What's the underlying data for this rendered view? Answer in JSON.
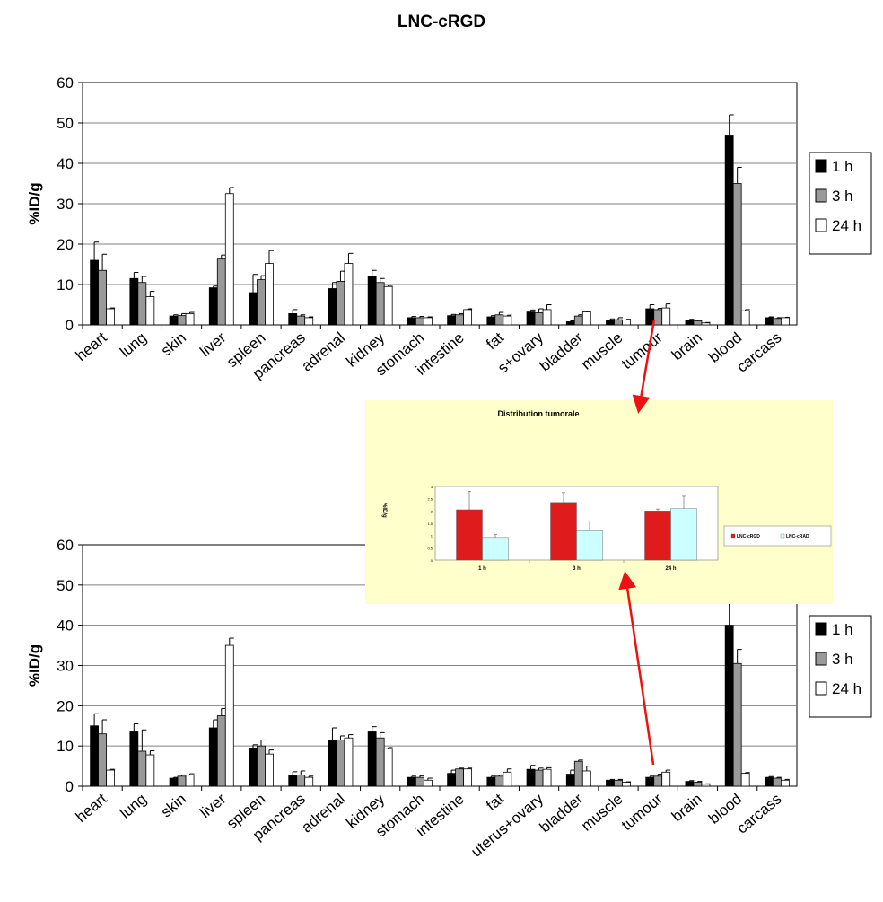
{
  "title": "LNC-cRGD",
  "colors": {
    "h1": "#000000",
    "h3": "#999999",
    "h24": "#ffffff",
    "grid": "#808080",
    "inset_bg": "#ffffcc",
    "cRGD": "#e01b1b",
    "cRAD": "#ccffff",
    "arrow": "#ee1111"
  },
  "chart_data": [
    {
      "type": "bar",
      "ylabel": "%ID/g",
      "ylim": [
        0,
        60
      ],
      "yticks": [
        0,
        10,
        20,
        30,
        40,
        50,
        60
      ],
      "categories": [
        "heart",
        "lung",
        "skin",
        "liver",
        "spleen",
        "pancreas",
        "adrenal",
        "kidney",
        "stomach",
        "intestine",
        "fat",
        "uterus+ovary",
        "bladder",
        "muscle",
        "tumour",
        "brain",
        "blood",
        "carcass"
      ],
      "visible_tick_labels": [
        "heart",
        "lung",
        "skin",
        "liver",
        "spleen",
        "pancreas",
        "adrenal",
        "kidney",
        "stomach",
        "intestine",
        "fat",
        "s+ovary",
        "bladder",
        "muscle",
        "tumour",
        "brain",
        "blood",
        "carcass"
      ],
      "legend": [
        "1 h",
        "3 h",
        "24 h"
      ],
      "series": [
        {
          "name": "1 h",
          "values": [
            16,
            11.5,
            2.2,
            9.2,
            8,
            2.8,
            9,
            12,
            1.8,
            2.3,
            2,
            3.2,
            0.8,
            1.2,
            4,
            1.2,
            47,
            1.8
          ],
          "errors": [
            4.5,
            1.5,
            0.3,
            0.4,
            4.5,
            1,
            1.5,
            1.5,
            0.3,
            0.3,
            0.3,
            0.5,
            0.2,
            0.3,
            1,
            0.2,
            5,
            0.2
          ]
        },
        {
          "name": "3 h",
          "values": [
            13.5,
            10.5,
            2.3,
            16.3,
            11.2,
            2.2,
            10.8,
            10.5,
            1.8,
            2.5,
            2.5,
            3,
            2.2,
            1.3,
            3.8,
            1,
            35,
            1.6
          ],
          "errors": [
            4,
            1.5,
            0.5,
            1,
            1,
            0.3,
            2.5,
            1,
            0.3,
            0.3,
            0.6,
            1,
            0.3,
            0.5,
            0.3,
            0.2,
            4,
            0.2
          ]
        },
        {
          "name": "24 h",
          "values": [
            4,
            7,
            2.8,
            32.5,
            15.2,
            1.8,
            15.2,
            9.5,
            1.8,
            3.8,
            2.2,
            3.8,
            3.2,
            1.2,
            4.2,
            0.5,
            3.5,
            1.8
          ],
          "errors": [
            0.2,
            1.3,
            0.3,
            1.5,
            3.2,
            0.2,
            2.5,
            0.3,
            0.2,
            0.2,
            0.2,
            1.2,
            0.2,
            0.2,
            1,
            0.1,
            0.3,
            0.1
          ]
        }
      ]
    },
    {
      "type": "bar",
      "ylabel": "%ID/g",
      "ylim": [
        0,
        60
      ],
      "yticks": [
        0,
        10,
        20,
        30,
        40,
        50,
        60
      ],
      "categories": [
        "heart",
        "lung",
        "skin",
        "liver",
        "spleen",
        "pancreas",
        "adrenal",
        "kidney",
        "stomach",
        "intestine",
        "fat",
        "uterus+ovary",
        "bladder",
        "muscle",
        "tumour",
        "brain",
        "blood",
        "carcass"
      ],
      "visible_tick_labels": [
        "heart",
        "lung",
        "skin",
        "liver",
        "spleen",
        "pancreas",
        "adrenal",
        "kidney",
        "stomach",
        "intestine",
        "fat",
        "uterus+ovary",
        "bladder",
        "muscle",
        "tumour",
        "brain",
        "blood",
        "carcass"
      ],
      "legend": [
        "1 h",
        "3 h",
        "24 h"
      ],
      "series": [
        {
          "name": "1 h",
          "values": [
            15,
            13.5,
            2,
            14.5,
            9.5,
            2.8,
            11.5,
            13.5,
            2.2,
            3.2,
            2.2,
            4.2,
            3,
            1.5,
            2.2,
            1.2,
            40,
            2.2
          ],
          "errors": [
            3,
            2,
            0.2,
            2,
            0.8,
            0.8,
            3,
            1.3,
            0.3,
            0.8,
            0.3,
            1,
            1,
            0.2,
            0.3,
            0.2,
            6,
            0.2
          ]
        },
        {
          "name": "3 h",
          "values": [
            13,
            8.7,
            2.5,
            17.5,
            10,
            2.8,
            11.5,
            12,
            2.2,
            4.3,
            2.5,
            4,
            6.2,
            1.5,
            2.5,
            1,
            30.5,
            2
          ],
          "errors": [
            3.5,
            5.3,
            0.3,
            1.8,
            1.5,
            1,
            1,
            1.3,
            0.4,
            0.2,
            0.3,
            0.5,
            0.3,
            0.2,
            0.5,
            0.2,
            3.5,
            0.2
          ]
        },
        {
          "name": "24 h",
          "values": [
            4,
            7.8,
            2.8,
            35,
            8,
            2.2,
            12,
            9.3,
            1.5,
            4.3,
            3.5,
            4.2,
            3.8,
            1,
            3.5,
            0.5,
            3.2,
            1.5
          ],
          "errors": [
            0.2,
            1,
            0.3,
            1.8,
            1,
            0.3,
            0.8,
            0.3,
            0.5,
            0.2,
            0.8,
            0.4,
            1.2,
            0.1,
            0.5,
            0.1,
            0.2,
            0.2
          ]
        }
      ]
    },
    {
      "type": "bar",
      "title": "Distribution tumorale",
      "ylabel": "%ID/g",
      "ylim": [
        0,
        3
      ],
      "yticks": [
        0,
        0.5,
        1,
        1.5,
        2,
        2.5,
        3
      ],
      "categories": [
        "1 h",
        "3 h",
        "24 h"
      ],
      "series": [
        {
          "name": "LNC-cRGD",
          "values": [
            2.05,
            2.35,
            2.0
          ],
          "errors": [
            0.75,
            0.4,
            0.08
          ]
        },
        {
          "name": "LNC-cRAD",
          "values": [
            0.92,
            1.2,
            2.1
          ],
          "errors": [
            0.12,
            0.4,
            0.5
          ]
        }
      ]
    }
  ]
}
